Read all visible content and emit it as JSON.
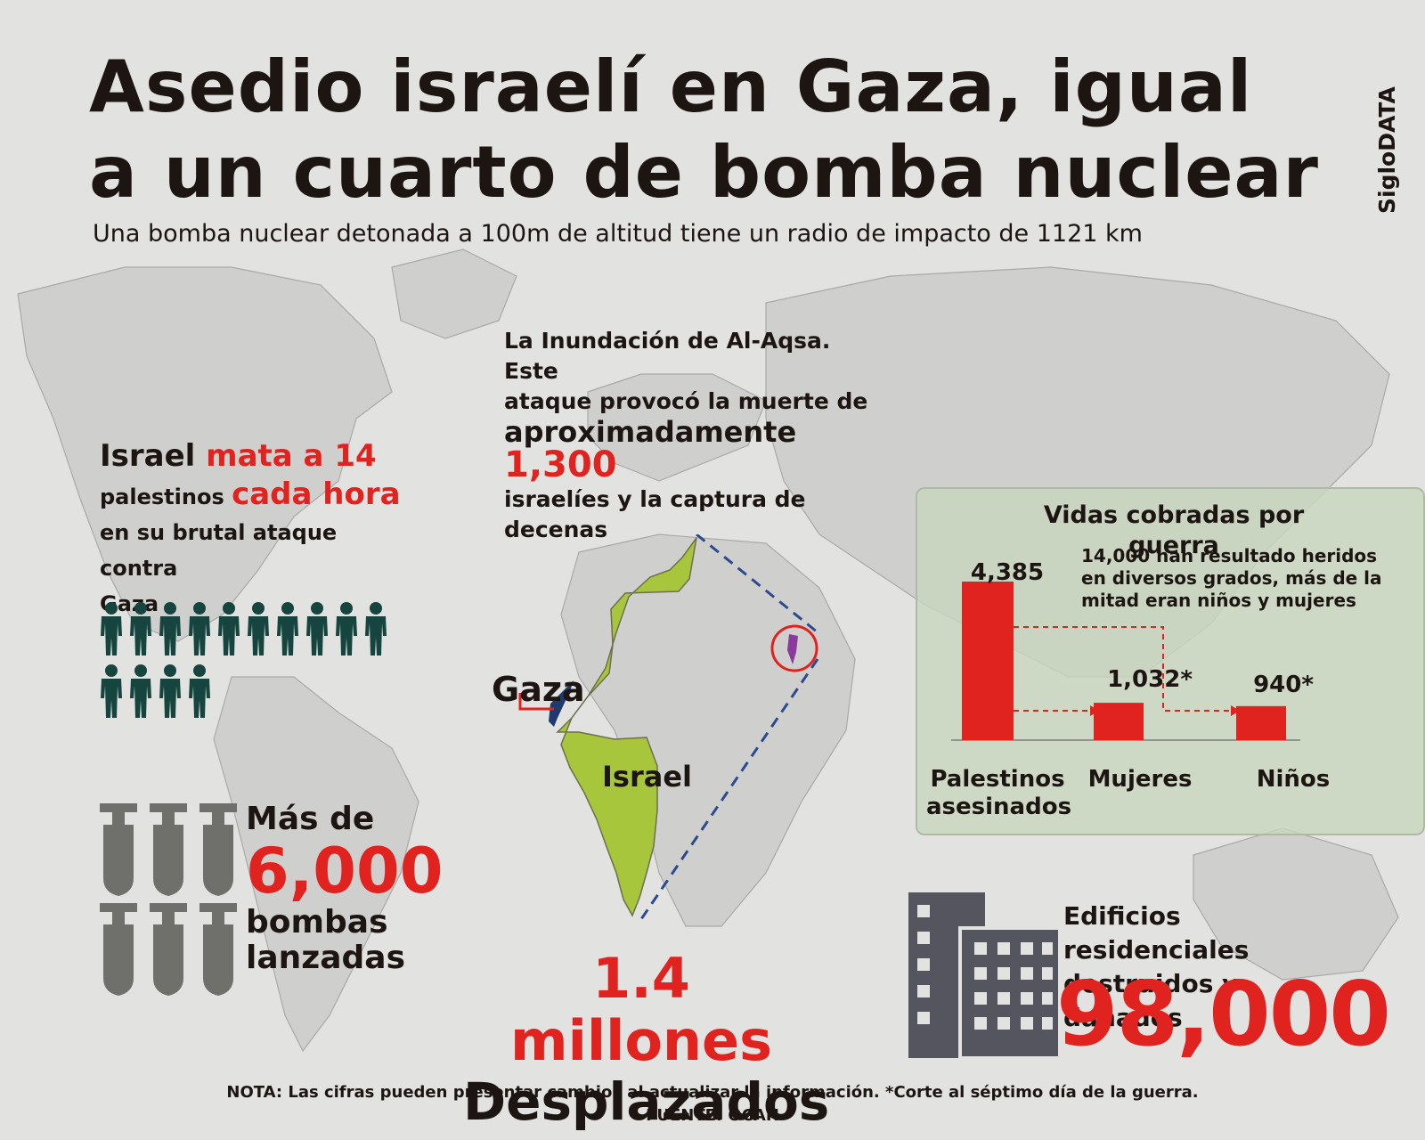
{
  "title_line1": "Asedio israelí en Gaza, igual",
  "title_line2": "a un cuarto de bomba nuclear",
  "subtitle": "Una bomba nuclear detonada a 100m de altitud tiene un radio de impacto de 1121 km",
  "brand": "SigloDATA",
  "aqsa": {
    "line1": "La Inundación de Al-Aqsa. Este",
    "line2": "ataque provocó la muerte de",
    "line3_pre": "aproximadamente ",
    "number": "1,300",
    "line4": "israelíes y la captura de decenas"
  },
  "kills": {
    "w1": "Israel ",
    "w2": "mata a 14",
    "w3": "palestinos ",
    "w4": "cada hora",
    "w5": "en su brutal ataque contra",
    "w6": "Gaza",
    "people_count": 14
  },
  "bombs": {
    "pre": "Más de",
    "number": "6,000",
    "line1": "bombas",
    "line2": "lanzadas",
    "icon_count": 6
  },
  "map": {
    "gaza_label": "Gaza",
    "israel_label": "Israel",
    "israel_color": "#a8c63c",
    "gaza_color": "#1e3a6e"
  },
  "displaced": {
    "number": "1.4 millones",
    "label": "Desplazados"
  },
  "casualties": {
    "title": "Vidas cobradas por guerra",
    "note": "14,000 han resultado heridos en diversos grados, más de la mitad eran niños y mujeres",
    "bars": [
      {
        "label": "Palestinos asesinados",
        "value_label": "4,385",
        "value": 4385
      },
      {
        "label": "Mujeres",
        "value_label": "1,032*",
        "value": 1032
      },
      {
        "label": "Niños",
        "value_label": "940*",
        "value": 940
      }
    ],
    "bar_color": "#e0231f"
  },
  "buildings": {
    "line1": "Edificios residenciales",
    "line2": "destruidos y dañados",
    "number": "98,000"
  },
  "footer": {
    "note": "NOTA: Las cifras pueden presentar cambios al actualizar la información. *Corte al séptimo día de la guerra.",
    "source": "FUENTE: OCAH"
  }
}
